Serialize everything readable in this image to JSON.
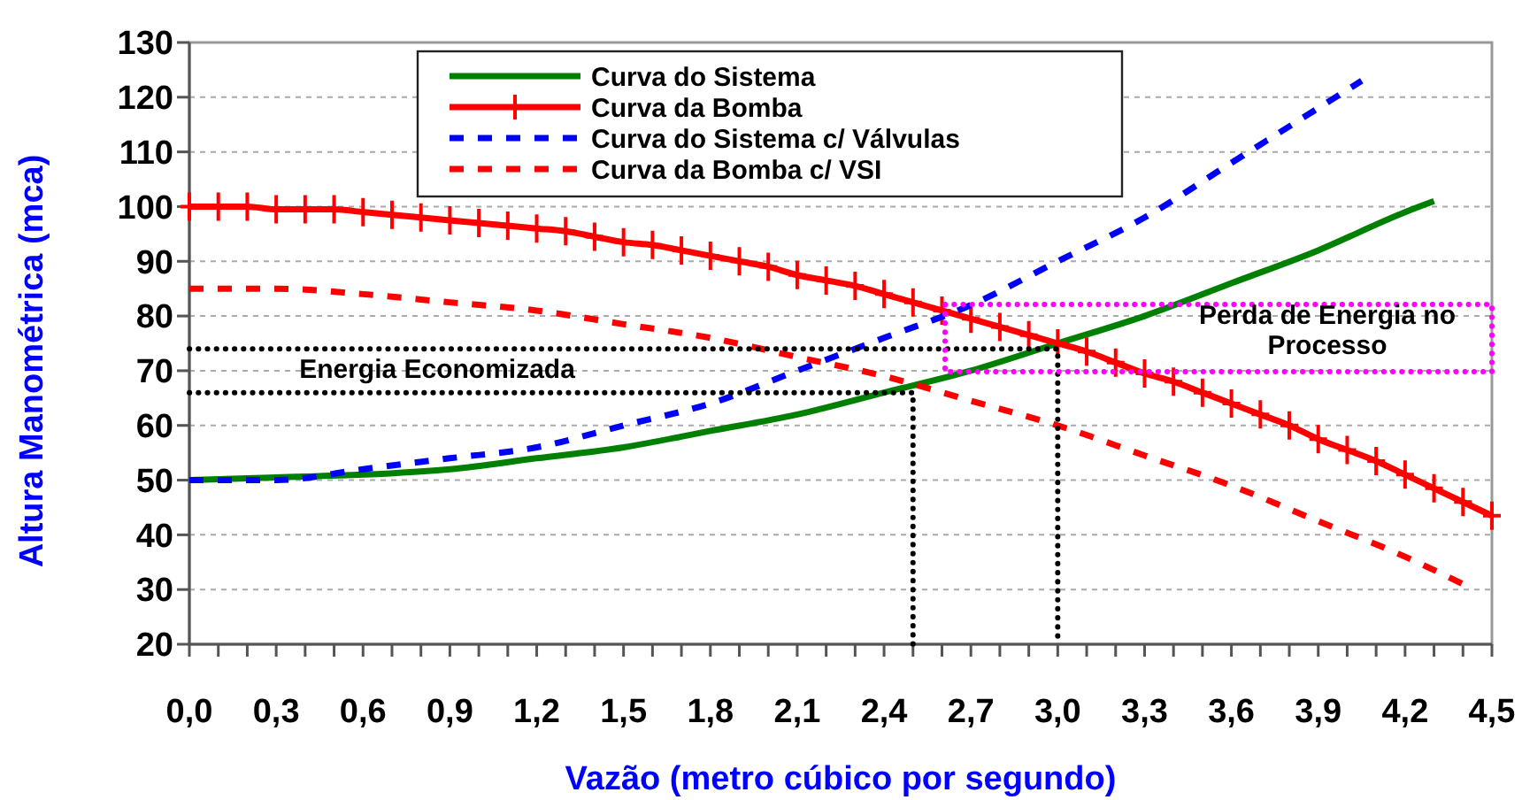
{
  "chart_data": {
    "type": "line",
    "xlabel": "Vazão (metro cúbico por segundo)",
    "ylabel": "Altura Manométrica (mca)",
    "xlim": [
      0,
      4.5
    ],
    "ylim": [
      20,
      130
    ],
    "xticks": [
      {
        "value": 0,
        "label": "0,0"
      },
      {
        "value": 0.1,
        "label": null
      },
      {
        "value": 0.2,
        "label": null
      },
      {
        "value": 0.3,
        "label": "0,3"
      },
      {
        "value": 0.4,
        "label": null
      },
      {
        "value": 0.5,
        "label": null
      },
      {
        "value": 0.6,
        "label": "0,6"
      },
      {
        "value": 0.7,
        "label": null
      },
      {
        "value": 0.8,
        "label": null
      },
      {
        "value": 0.9,
        "label": "0,9"
      },
      {
        "value": 1.0,
        "label": null
      },
      {
        "value": 1.1,
        "label": null
      },
      {
        "value": 1.2,
        "label": "1,2"
      },
      {
        "value": 1.3,
        "label": null
      },
      {
        "value": 1.4,
        "label": null
      },
      {
        "value": 1.5,
        "label": "1,5"
      },
      {
        "value": 1.6,
        "label": null
      },
      {
        "value": 1.7,
        "label": null
      },
      {
        "value": 1.8,
        "label": "1,8"
      },
      {
        "value": 1.9,
        "label": null
      },
      {
        "value": 2.0,
        "label": null
      },
      {
        "value": 2.1,
        "label": "2,1"
      },
      {
        "value": 2.2,
        "label": null
      },
      {
        "value": 2.3,
        "label": null
      },
      {
        "value": 2.4,
        "label": "2,4"
      },
      {
        "value": 2.5,
        "label": null
      },
      {
        "value": 2.6,
        "label": null
      },
      {
        "value": 2.7,
        "label": "2,7"
      },
      {
        "value": 2.8,
        "label": null
      },
      {
        "value": 2.9,
        "label": null
      },
      {
        "value": 3.0,
        "label": "3,0"
      },
      {
        "value": 3.1,
        "label": null
      },
      {
        "value": 3.2,
        "label": null
      },
      {
        "value": 3.3,
        "label": "3,3"
      },
      {
        "value": 3.4,
        "label": null
      },
      {
        "value": 3.5,
        "label": null
      },
      {
        "value": 3.6,
        "label": "3,6"
      },
      {
        "value": 3.7,
        "label": null
      },
      {
        "value": 3.8,
        "label": null
      },
      {
        "value": 3.9,
        "label": "3,9"
      },
      {
        "value": 4.0,
        "label": null
      },
      {
        "value": 4.1,
        "label": null
      },
      {
        "value": 4.2,
        "label": "4,2"
      },
      {
        "value": 4.3,
        "label": null
      },
      {
        "value": 4.4,
        "label": null
      },
      {
        "value": 4.5,
        "label": "4,5"
      }
    ],
    "yticks": [
      20,
      30,
      40,
      50,
      60,
      70,
      80,
      90,
      100,
      110,
      120,
      130
    ],
    "grid": "y",
    "legend": "top",
    "series": [
      {
        "name": "Curva do Sistema",
        "color": "#008000",
        "line_style": "solid",
        "marker": "none",
        "x": [
          0,
          0.3,
          0.6,
          0.9,
          1.2,
          1.5,
          1.8,
          2.1,
          2.4,
          2.7,
          3.0,
          3.3,
          3.6,
          3.9,
          4.2,
          4.3
        ],
        "values": [
          50,
          50.5,
          51,
          52,
          54,
          56,
          59,
          62,
          66,
          70,
          75,
          80,
          86,
          92,
          99,
          101
        ]
      },
      {
        "name": "Curva da Bomba",
        "color": "#ff0000",
        "line_style": "solid",
        "marker": "cross",
        "x": [
          0,
          0.1,
          0.2,
          0.3,
          0.4,
          0.5,
          0.6,
          0.7,
          0.8,
          0.9,
          1.0,
          1.1,
          1.2,
          1.3,
          1.4,
          1.5,
          1.6,
          1.7,
          1.8,
          1.9,
          2.0,
          2.1,
          2.2,
          2.3,
          2.4,
          2.5,
          2.6,
          2.7,
          2.8,
          2.9,
          3.0,
          3.1,
          3.2,
          3.3,
          3.4,
          3.5,
          3.6,
          3.7,
          3.8,
          3.9,
          4.0,
          4.1,
          4.2,
          4.3,
          4.4,
          4.5
        ],
        "values": [
          100,
          100,
          100,
          99.5,
          99.5,
          99.5,
          99,
          98.5,
          98,
          97.5,
          97,
          96.5,
          96,
          95.5,
          94.5,
          93.5,
          93,
          92,
          91,
          90,
          89,
          87.5,
          86.5,
          85.5,
          84,
          82.5,
          81,
          79.5,
          78,
          76.5,
          75,
          73.5,
          71.5,
          69.5,
          68,
          66,
          64,
          62,
          60,
          57.5,
          55.5,
          53.5,
          51,
          48.5,
          46,
          43.5
        ]
      },
      {
        "name": "Curva do Sistema c/ Válvulas",
        "color": "#0000ff",
        "line_style": "dashed",
        "marker": "none",
        "x": [
          0,
          0.3,
          0.6,
          0.9,
          1.2,
          1.5,
          1.8,
          2.1,
          2.4,
          2.7,
          3.0,
          3.3,
          3.6,
          3.9,
          4.05
        ],
        "values": [
          50,
          50,
          52,
          54,
          56,
          60,
          64,
          70,
          76,
          82,
          90,
          98,
          108,
          118,
          123
        ]
      },
      {
        "name": "Curva da Bomba c/ VSI",
        "color": "#ff0000",
        "line_style": "dashed",
        "marker": "none",
        "x": [
          0,
          0.3,
          0.6,
          0.9,
          1.2,
          1.5,
          1.8,
          2.1,
          2.4,
          2.7,
          3.0,
          3.3,
          3.6,
          3.9,
          4.2,
          4.4
        ],
        "values": [
          85,
          85,
          84,
          82.5,
          81,
          78.5,
          76,
          72.5,
          69,
          64.5,
          60,
          54.5,
          49,
          42.5,
          36,
          31
        ]
      },
      {
        "color": "#000000",
        "line_style": "dotted",
        "marker": "none",
        "x": [
          0,
          3.0,
          3.0
        ],
        "values": [
          74,
          74,
          20
        ]
      },
      {
        "color": "#000000",
        "line_style": "dotted",
        "marker": "none",
        "x": [
          0,
          2.5,
          2.5
        ],
        "values": [
          66,
          66,
          20
        ]
      }
    ],
    "annotations": [
      "Energia Economizada",
      "Perda de Energia no Processo"
    ]
  }
}
